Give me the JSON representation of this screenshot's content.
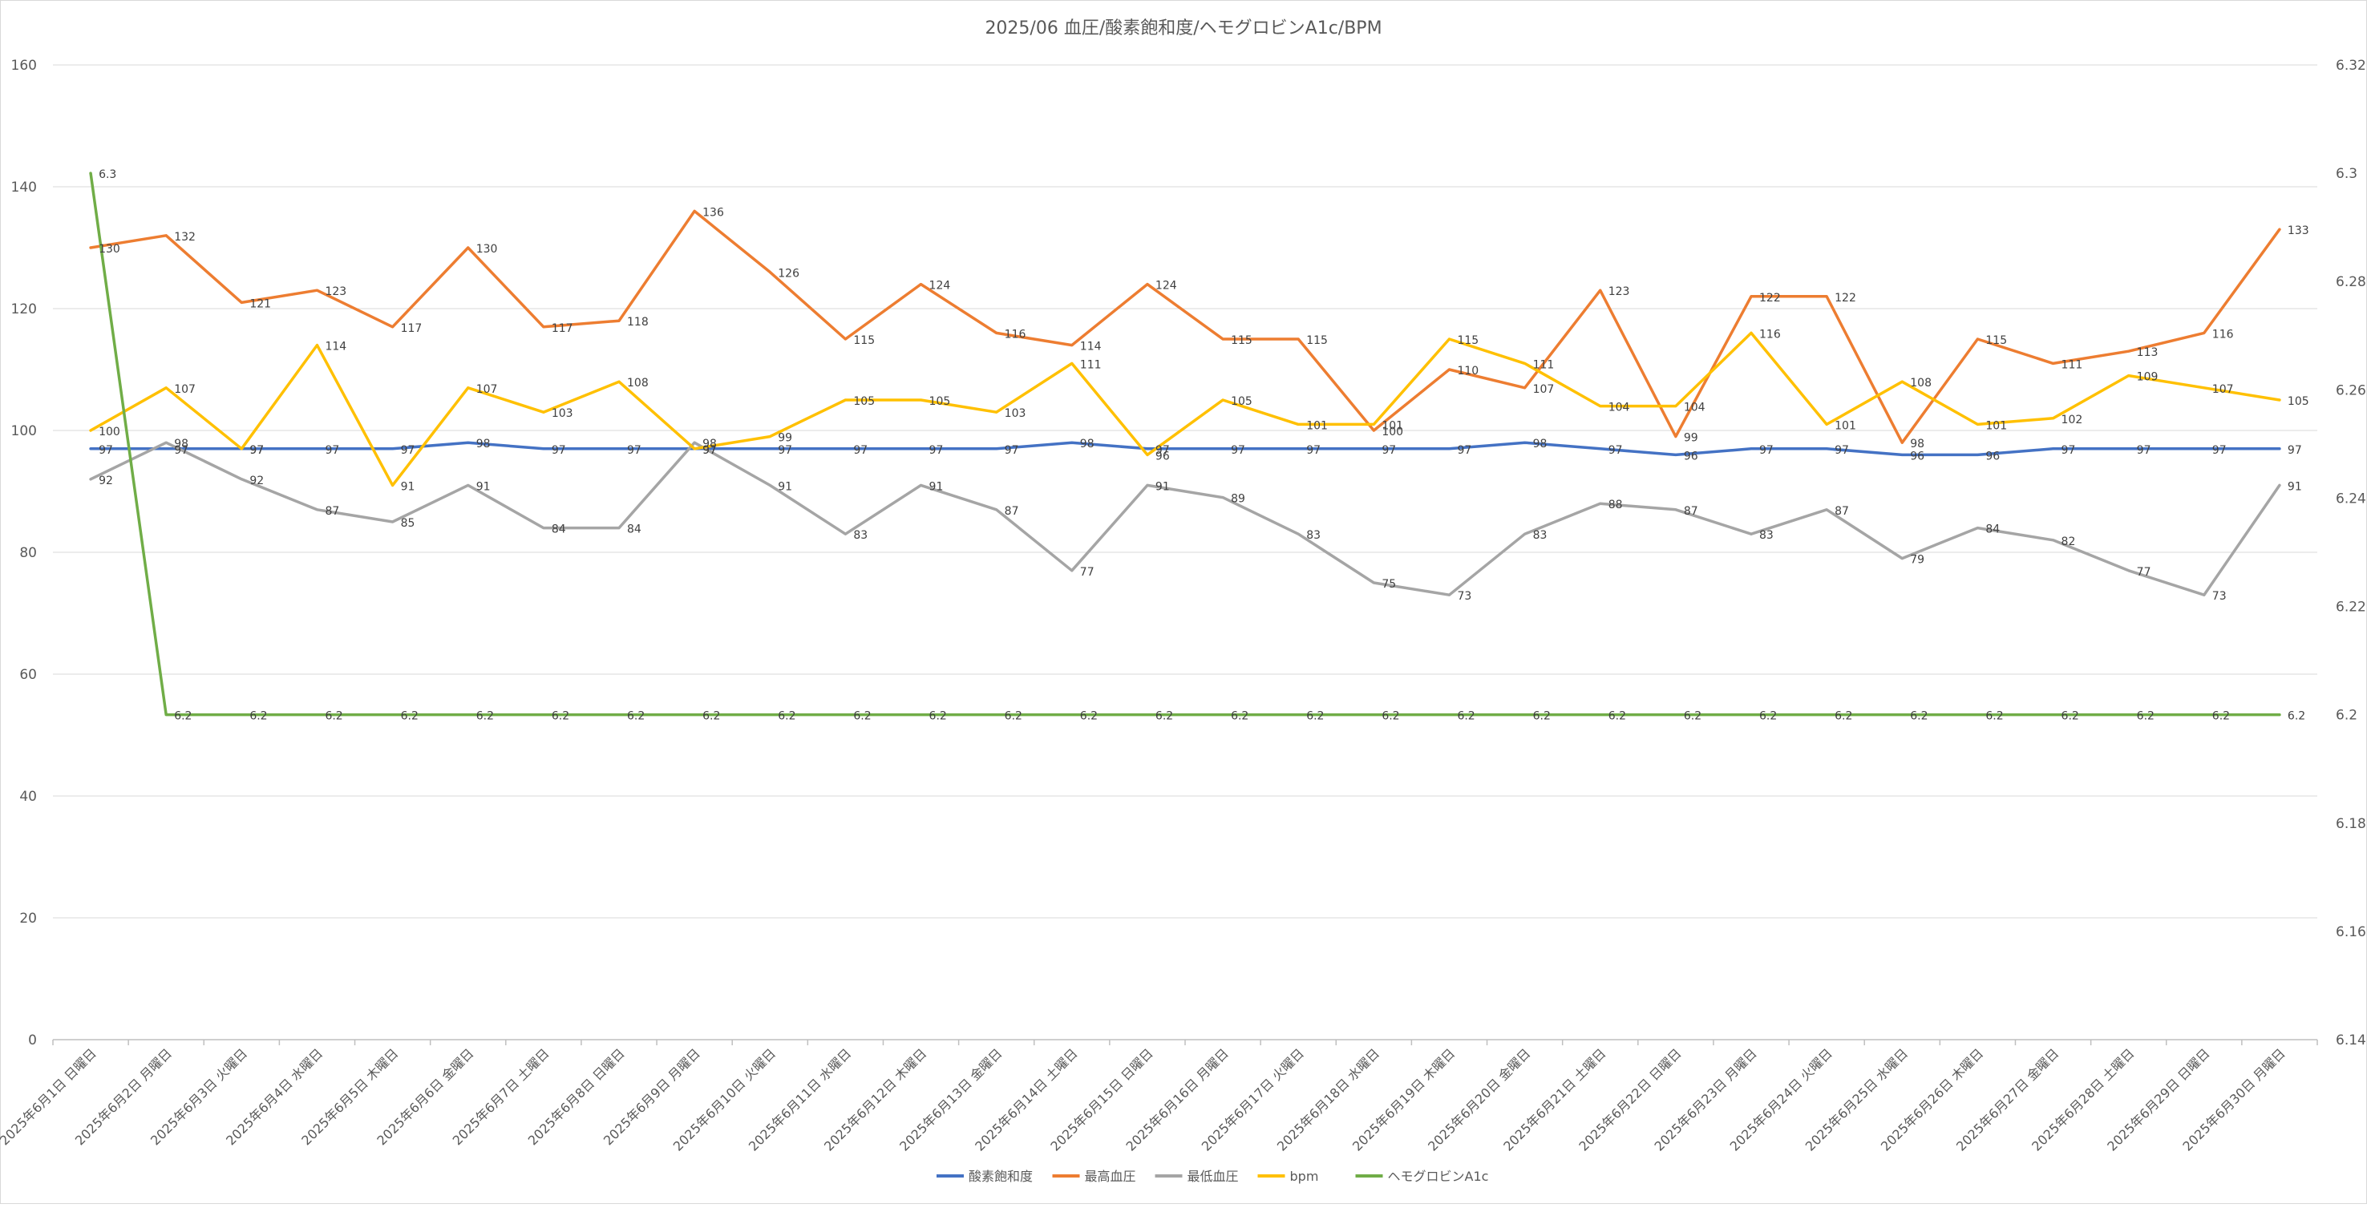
{
  "chart_data": {
    "type": "line",
    "title": "2025/06 血圧/酸素飽和度/ヘモグロビンA1c/BPM",
    "categories": [
      "2025年6月1日 日曜日",
      "2025年6月2日 月曜日",
      "2025年6月3日 火曜日",
      "2025年6月4日 水曜日",
      "2025年6月5日 木曜日",
      "2025年6月6日 金曜日",
      "2025年6月7日 土曜日",
      "2025年6月8日 日曜日",
      "2025年6月9日 月曜日",
      "2025年6月10日 火曜日",
      "2025年6月11日 水曜日",
      "2025年6月12日 木曜日",
      "2025年6月13日 金曜日",
      "2025年6月14日 土曜日",
      "2025年6月15日 日曜日",
      "2025年6月16日 月曜日",
      "2025年6月17日 火曜日",
      "2025年6月18日 水曜日",
      "2025年6月19日 木曜日",
      "2025年6月20日 金曜日",
      "2025年6月21日 土曜日",
      "2025年6月22日 日曜日",
      "2025年6月23日 月曜日",
      "2025年6月24日 火曜日",
      "2025年6月25日 水曜日",
      "2025年6月26日 木曜日",
      "2025年6月27日 金曜日",
      "2025年6月28日 土曜日",
      "2025年6月29日 日曜日",
      "2025年6月30日 月曜日"
    ],
    "y_left": {
      "min": 0,
      "max": 160,
      "ticks": [
        "0",
        "20",
        "40",
        "60",
        "80",
        "100",
        "120",
        "140",
        "160"
      ]
    },
    "y_right": {
      "min": 6.14,
      "max": 6.32,
      "ticks": [
        "6.14",
        "6.16",
        "6.18",
        "6.2",
        "6.22",
        "6.24",
        "6.26",
        "6.28",
        "6.3",
        "6.32"
      ]
    },
    "grid": "horizontal",
    "legend_position": "bottom",
    "series": [
      {
        "name": "酸素飽和度",
        "color": "#4472C4",
        "axis": "left",
        "values": [
          97,
          97,
          97,
          97,
          97,
          98,
          97,
          97,
          97,
          97,
          97,
          97,
          97,
          98,
          97,
          97,
          97,
          97,
          97,
          98,
          97,
          96,
          97,
          97,
          96,
          96,
          97,
          97,
          97,
          97
        ]
      },
      {
        "name": "最高血圧",
        "color": "#ED7D31",
        "axis": "left",
        "values": [
          130,
          132,
          121,
          123,
          117,
          130,
          117,
          118,
          136,
          126,
          115,
          124,
          116,
          114,
          124,
          115,
          115,
          100,
          110,
          107,
          123,
          99,
          122,
          122,
          98,
          115,
          111,
          113,
          116,
          133
        ]
      },
      {
        "name": "最低血圧",
        "color": "#A5A5A5",
        "axis": "left",
        "values": [
          92,
          98,
          92,
          87,
          85,
          91,
          84,
          84,
          98,
          91,
          83,
          91,
          87,
          77,
          91,
          89,
          83,
          75,
          73,
          83,
          88,
          87,
          83,
          87,
          79,
          84,
          82,
          77,
          73,
          91
        ]
      },
      {
        "name": "bpm",
        "color": "#FFC000",
        "axis": "left",
        "values": [
          100,
          107,
          97,
          114,
          91,
          107,
          103,
          108,
          97,
          99,
          105,
          105,
          103,
          111,
          96,
          105,
          101,
          101,
          115,
          111,
          104,
          104,
          116,
          101,
          108,
          101,
          102,
          109,
          107,
          105
        ]
      },
      {
        "name": "ヘモグロビンA1c",
        "color": "#70AD47",
        "axis": "right",
        "values": [
          6.3,
          6.2,
          6.2,
          6.2,
          6.2,
          6.2,
          6.2,
          6.2,
          6.2,
          6.2,
          6.2,
          6.2,
          6.2,
          6.2,
          6.2,
          6.2,
          6.2,
          6.2,
          6.2,
          6.2,
          6.2,
          6.2,
          6.2,
          6.2,
          6.2,
          6.2,
          6.2,
          6.2,
          6.2,
          6.2
        ]
      }
    ]
  }
}
